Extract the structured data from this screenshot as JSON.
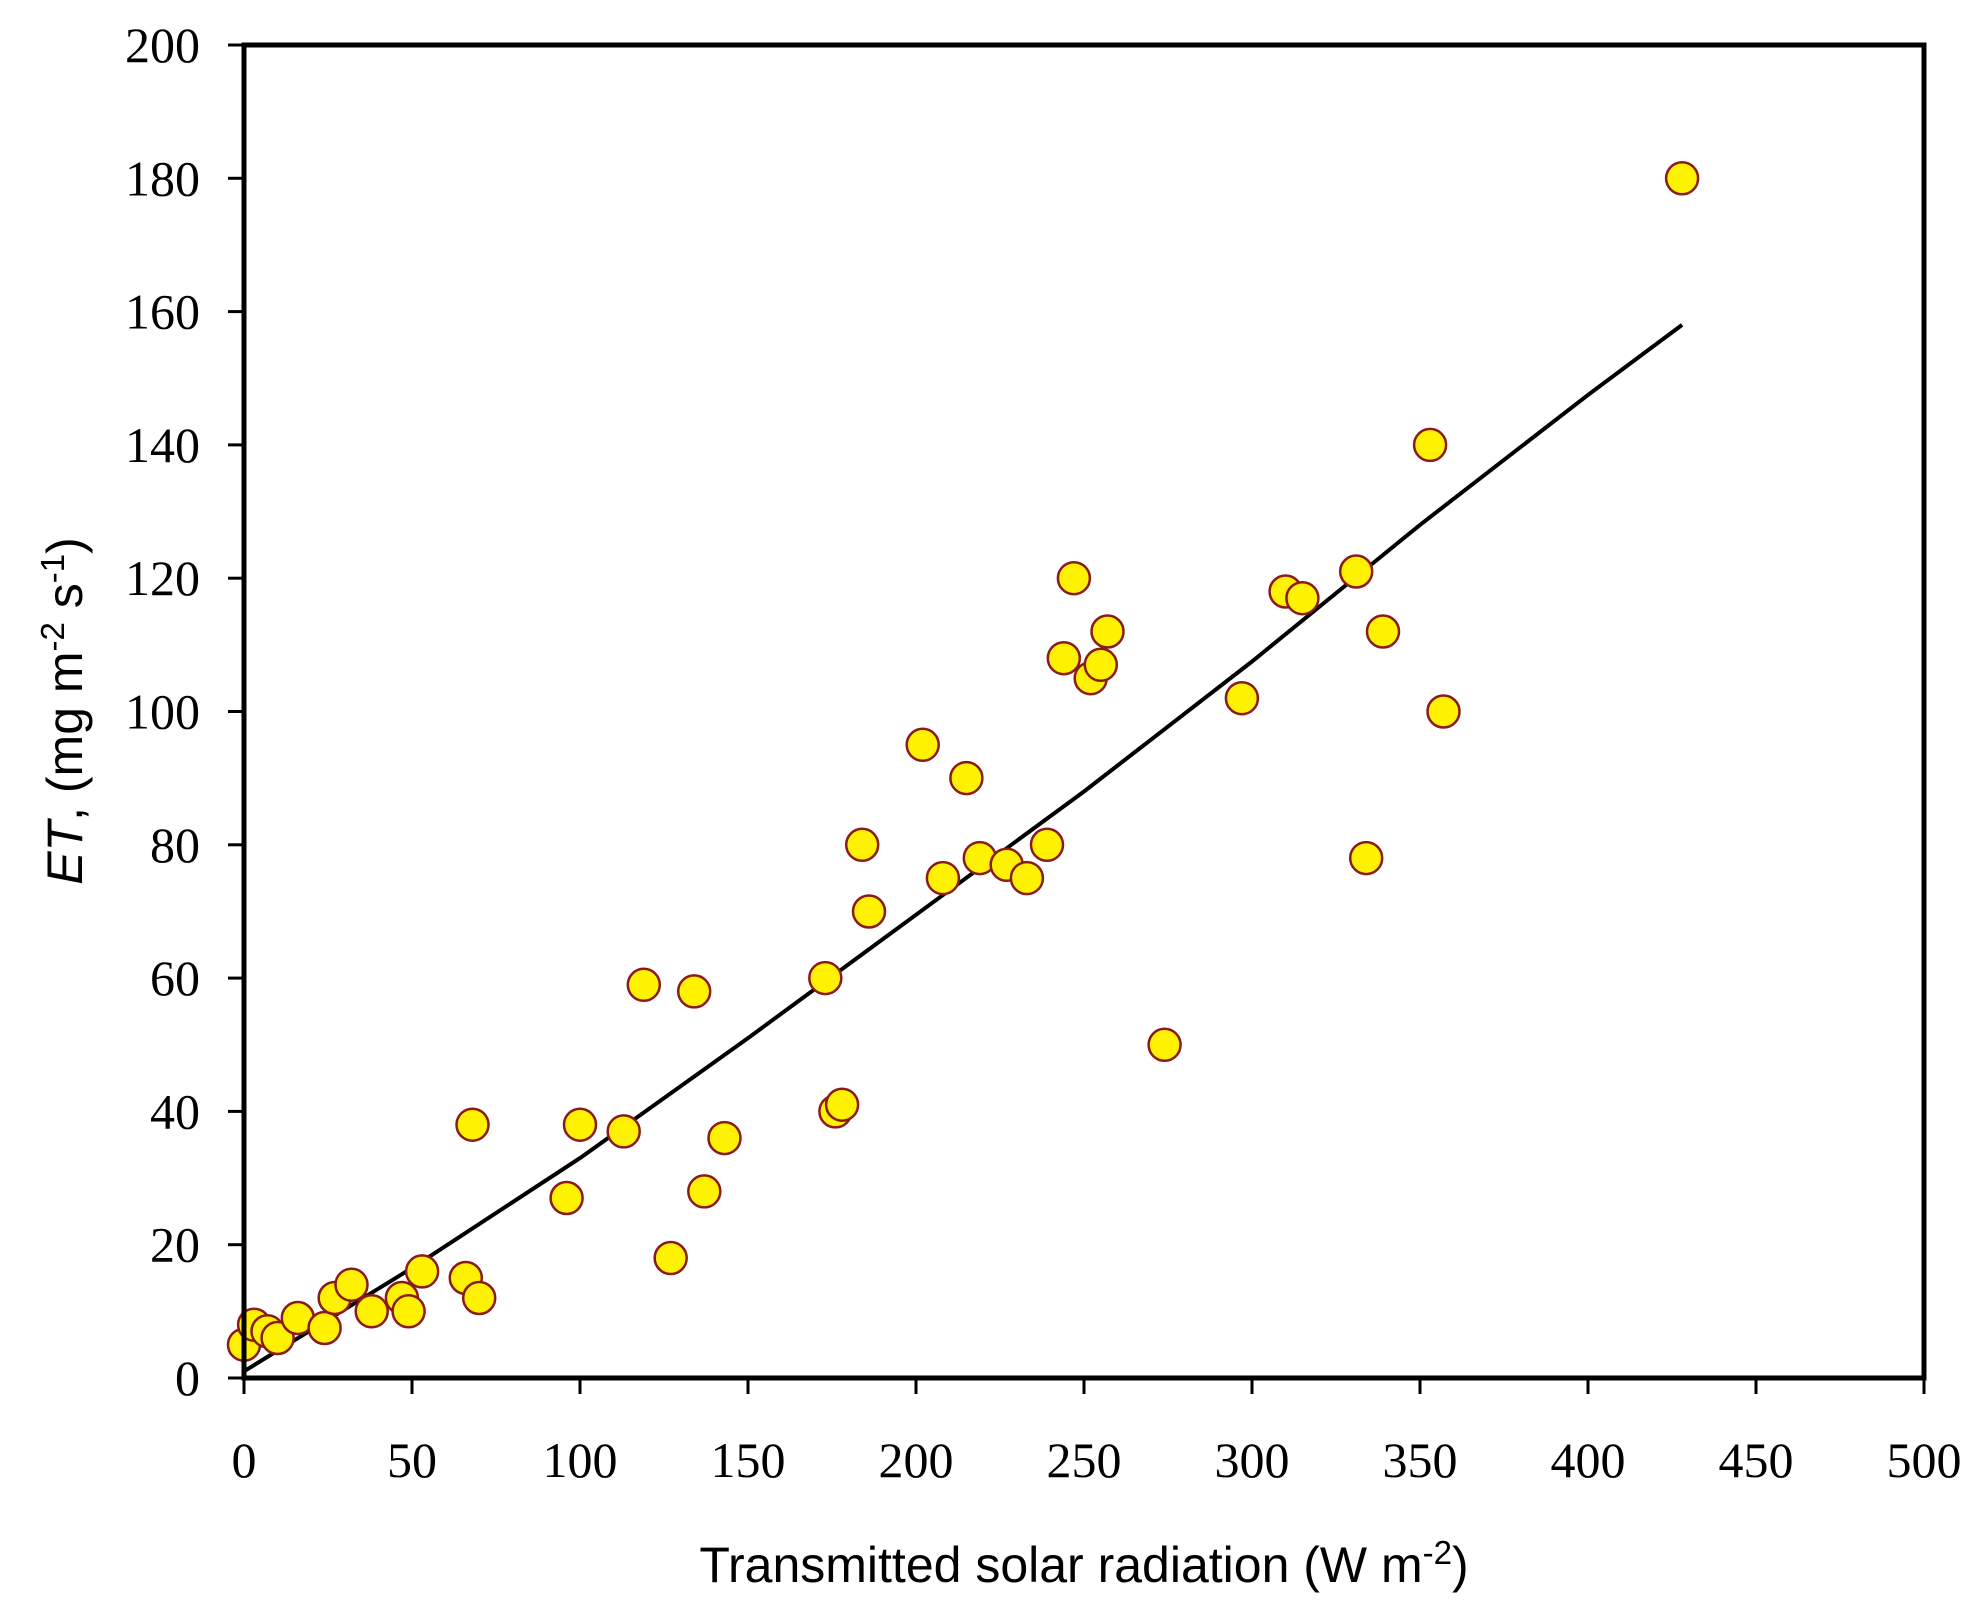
{
  "chart_data": {
    "type": "scatter",
    "title": "",
    "xlabel": {
      "main": "Transmitted solar radiation (W m",
      "sup": "-2",
      "end": ")"
    },
    "ylabel": {
      "italic": "ET",
      "main": ", (mg m",
      "sup1": "-2",
      "mid": " s",
      "sup2": "-1",
      "end": ")"
    },
    "xlim": [
      0,
      500
    ],
    "ylim": [
      0,
      200
    ],
    "x_ticks": [
      0,
      50,
      100,
      150,
      200,
      250,
      300,
      350,
      400,
      450,
      500
    ],
    "y_ticks": [
      0,
      20,
      40,
      60,
      80,
      100,
      120,
      140,
      160,
      180,
      200
    ],
    "grid": false,
    "legend": "none",
    "colors": {
      "marker_fill": "#FFF200",
      "marker_edge": "#8B1A1A",
      "line": "#000000",
      "axis": "#000000"
    },
    "series": [
      {
        "type": "scatter",
        "x": [
          0,
          3,
          7,
          10,
          16,
          24,
          27,
          32,
          38,
          47,
          49,
          53,
          66,
          68,
          70,
          96,
          100,
          113,
          119,
          127,
          134,
          137,
          143,
          173,
          176,
          178,
          184,
          186,
          202,
          208,
          215,
          219,
          227,
          233,
          239,
          244,
          247,
          252,
          255,
          257,
          274,
          297,
          310,
          315,
          331,
          334,
          339,
          353,
          357,
          428
        ],
        "y": [
          5,
          8,
          7,
          6,
          9,
          7.5,
          12,
          14,
          10,
          12,
          10,
          16,
          15,
          38,
          12,
          27,
          38,
          37,
          59,
          18,
          58,
          28,
          36,
          60,
          40,
          41,
          80,
          70,
          95,
          75,
          90,
          78,
          77,
          75,
          80,
          108,
          120,
          105,
          107,
          112,
          50,
          102,
          118,
          117,
          121,
          78,
          112,
          140,
          100,
          180
        ]
      },
      {
        "type": "line",
        "x": [
          0,
          50,
          100,
          150,
          200,
          250,
          300,
          350,
          400,
          428
        ],
        "y": [
          1,
          16.5,
          33,
          51,
          69.5,
          88,
          107.5,
          128,
          147.5,
          158
        ]
      }
    ]
  }
}
